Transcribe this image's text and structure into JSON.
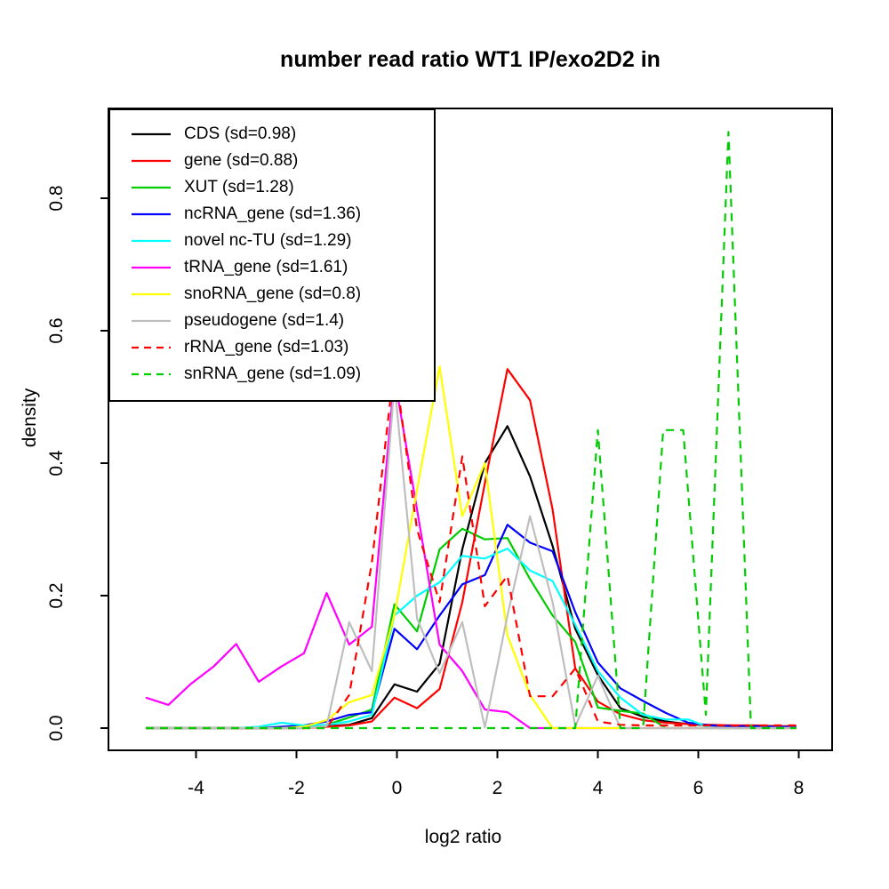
{
  "chart_data": {
    "type": "line",
    "title": "number read ratio WT1 IP/exo2D2 in",
    "xlabel": "log2 ratio",
    "ylabel": "density",
    "xlim": [
      -5.3,
      8.7
    ],
    "ylim": [
      0,
      0.935
    ],
    "grid": false,
    "legend_position": "top-left",
    "x_ticks": [
      {
        "label": "-4",
        "value": -4
      },
      {
        "label": "-2",
        "value": -2
      },
      {
        "label": "0",
        "value": 0
      },
      {
        "label": "2",
        "value": 2
      },
      {
        "label": "4",
        "value": 4
      },
      {
        "label": "6",
        "value": 6
      },
      {
        "label": "8",
        "value": 8
      }
    ],
    "y_ticks": [
      {
        "label": "0.0",
        "value": 0
      },
      {
        "label": "0.2",
        "value": 0.2
      },
      {
        "label": "0.4",
        "value": 0.4
      },
      {
        "label": "0.6",
        "value": 0.6
      },
      {
        "label": "0.8",
        "value": 0.8
      }
    ],
    "series": [
      {
        "name": "CDS",
        "sd": 0.98,
        "legend_label": "CDS (sd=0.98)",
        "color": "#000000",
        "style": "solid",
        "points": [
          [
            -5.0,
            0
          ],
          [
            -2.3,
            0
          ],
          [
            -1.85,
            0.001
          ],
          [
            -1.4,
            0.003
          ],
          [
            -0.95,
            0.005
          ],
          [
            -0.5,
            0.015
          ],
          [
            -0.05,
            0.066
          ],
          [
            0.4,
            0.055
          ],
          [
            0.85,
            0.097
          ],
          [
            1.3,
            0.27
          ],
          [
            1.75,
            0.4
          ],
          [
            2.2,
            0.456
          ],
          [
            2.65,
            0.38
          ],
          [
            3.1,
            0.275
          ],
          [
            3.55,
            0.15
          ],
          [
            4.0,
            0.08
          ],
          [
            4.45,
            0.03
          ],
          [
            4.9,
            0.017
          ],
          [
            5.35,
            0.01
          ],
          [
            5.8,
            0.006
          ],
          [
            6.25,
            0.004
          ],
          [
            6.7,
            0.003
          ],
          [
            7.15,
            0.003
          ],
          [
            7.6,
            0.002
          ],
          [
            7.95,
            0.002
          ]
        ]
      },
      {
        "name": "gene",
        "sd": 0.88,
        "legend_label": "gene (sd=0.88)",
        "color": "#FF0000",
        "style": "solid",
        "points": [
          [
            -5.0,
            0
          ],
          [
            -1.85,
            0
          ],
          [
            -1.4,
            0.002
          ],
          [
            -0.95,
            0.004
          ],
          [
            -0.5,
            0.01
          ],
          [
            -0.05,
            0.046
          ],
          [
            0.4,
            0.03
          ],
          [
            0.85,
            0.059
          ],
          [
            1.3,
            0.19
          ],
          [
            1.75,
            0.37
          ],
          [
            2.2,
            0.542
          ],
          [
            2.65,
            0.495
          ],
          [
            3.1,
            0.33
          ],
          [
            3.55,
            0.09
          ],
          [
            4.0,
            0.04
          ],
          [
            4.45,
            0.021
          ],
          [
            4.9,
            0.012
          ],
          [
            5.35,
            0.008
          ],
          [
            5.8,
            0.006
          ],
          [
            6.25,
            0.005
          ],
          [
            6.7,
            0.004
          ],
          [
            7.15,
            0.004
          ],
          [
            7.6,
            0.003
          ],
          [
            7.95,
            0.003
          ]
        ]
      },
      {
        "name": "XUT",
        "sd": 1.28,
        "legend_label": "XUT (sd=1.28)",
        "color": "#00CD00",
        "style": "solid",
        "points": [
          [
            -5.0,
            0
          ],
          [
            -1.85,
            0
          ],
          [
            -1.4,
            0.005
          ],
          [
            -0.95,
            0.016
          ],
          [
            -0.5,
            0.028
          ],
          [
            -0.05,
            0.187
          ],
          [
            0.4,
            0.146
          ],
          [
            0.85,
            0.27
          ],
          [
            1.3,
            0.301
          ],
          [
            1.75,
            0.285
          ],
          [
            2.2,
            0.287
          ],
          [
            2.65,
            0.225
          ],
          [
            3.1,
            0.17
          ],
          [
            3.55,
            0.13
          ],
          [
            4.0,
            0.031
          ],
          [
            4.45,
            0.026
          ],
          [
            4.9,
            0.022
          ],
          [
            5.35,
            0
          ],
          [
            7.95,
            0
          ]
        ]
      },
      {
        "name": "ncRNA_gene",
        "sd": 1.36,
        "legend_label": "ncRNA_gene (sd=1.36)",
        "color": "#0000FF",
        "style": "solid",
        "points": [
          [
            -5.0,
            0
          ],
          [
            -2.75,
            0
          ],
          [
            -2.3,
            0.002
          ],
          [
            -1.85,
            0.004
          ],
          [
            -1.4,
            0.01
          ],
          [
            -0.95,
            0.02
          ],
          [
            -0.5,
            0.024
          ],
          [
            -0.05,
            0.15
          ],
          [
            0.4,
            0.119
          ],
          [
            0.85,
            0.17
          ],
          [
            1.3,
            0.217
          ],
          [
            1.75,
            0.231
          ],
          [
            2.2,
            0.307
          ],
          [
            2.65,
            0.28
          ],
          [
            3.1,
            0.267
          ],
          [
            3.55,
            0.175
          ],
          [
            4.0,
            0.099
          ],
          [
            4.45,
            0.06
          ],
          [
            4.9,
            0.041
          ],
          [
            5.35,
            0.023
          ],
          [
            5.8,
            0.008
          ],
          [
            6.25,
            0.004
          ],
          [
            6.7,
            0.003
          ],
          [
            7.15,
            0.003
          ],
          [
            7.6,
            0.002
          ],
          [
            7.95,
            0.002
          ]
        ]
      },
      {
        "name": "novel nc-TU",
        "sd": 1.29,
        "legend_label": "novel nc-TU (sd=1.29)",
        "color": "#00FFFF",
        "style": "solid",
        "points": [
          [
            -5.0,
            0
          ],
          [
            -3.2,
            0
          ],
          [
            -2.75,
            0.002
          ],
          [
            -2.3,
            0.008
          ],
          [
            -1.85,
            0.004
          ],
          [
            -1.4,
            0.005
          ],
          [
            -0.95,
            0.01
          ],
          [
            -0.5,
            0.02
          ],
          [
            -0.05,
            0.17
          ],
          [
            0.4,
            0.2
          ],
          [
            0.85,
            0.22
          ],
          [
            1.3,
            0.26
          ],
          [
            1.75,
            0.256
          ],
          [
            2.2,
            0.271
          ],
          [
            2.65,
            0.238
          ],
          [
            3.1,
            0.222
          ],
          [
            3.55,
            0.156
          ],
          [
            4.0,
            0.086
          ],
          [
            4.45,
            0.046
          ],
          [
            4.9,
            0.02
          ],
          [
            5.35,
            0.013
          ],
          [
            5.8,
            0.013
          ],
          [
            6.25,
            0
          ],
          [
            7.95,
            0
          ]
        ]
      },
      {
        "name": "tRNA_gene",
        "sd": 1.61,
        "legend_label": "tRNA_gene (sd=1.61)",
        "color": "#FF00FF",
        "style": "solid",
        "points": [
          [
            -5.0,
            0.046
          ],
          [
            -4.55,
            0.035
          ],
          [
            -4.1,
            0.067
          ],
          [
            -3.65,
            0.093
          ],
          [
            -3.2,
            0.127
          ],
          [
            -2.75,
            0.07
          ],
          [
            -2.3,
            0.093
          ],
          [
            -1.85,
            0.113
          ],
          [
            -1.4,
            0.204
          ],
          [
            -0.95,
            0.126
          ],
          [
            -0.5,
            0.153
          ],
          [
            -0.05,
            0.53
          ],
          [
            0.4,
            0.33
          ],
          [
            0.85,
            0.126
          ],
          [
            1.3,
            0.086
          ],
          [
            1.75,
            0.028
          ],
          [
            2.2,
            0.024
          ],
          [
            2.65,
            0
          ],
          [
            7.95,
            0
          ]
        ]
      },
      {
        "name": "snoRNA_gene",
        "sd": 0.8,
        "legend_label": "snoRNA_gene (sd=0.8)",
        "color": "#FFFF00",
        "style": "solid",
        "points": [
          [
            -5.0,
            0
          ],
          [
            -2.3,
            0
          ],
          [
            -1.85,
            0.002
          ],
          [
            -1.4,
            0.012
          ],
          [
            -0.95,
            0.039
          ],
          [
            -0.5,
            0.05
          ],
          [
            -0.05,
            0.17
          ],
          [
            0.4,
            0.36
          ],
          [
            0.85,
            0.546
          ],
          [
            1.3,
            0.32
          ],
          [
            1.75,
            0.4
          ],
          [
            2.2,
            0.14
          ],
          [
            2.65,
            0.05
          ],
          [
            3.1,
            0
          ],
          [
            7.95,
            0
          ]
        ]
      },
      {
        "name": "pseudogene",
        "sd": 1.4,
        "legend_label": "pseudogene (sd=1.4)",
        "color": "#BEBEBE",
        "style": "solid",
        "points": [
          [
            -5.0,
            0
          ],
          [
            -1.85,
            0
          ],
          [
            -1.4,
            0.003
          ],
          [
            -0.95,
            0.16
          ],
          [
            -0.5,
            0.086
          ],
          [
            -0.05,
            0.52
          ],
          [
            0.4,
            0.166
          ],
          [
            0.85,
            0.083
          ],
          [
            1.3,
            0.16
          ],
          [
            1.75,
            0.001
          ],
          [
            2.2,
            0.17
          ],
          [
            2.65,
            0.32
          ],
          [
            3.1,
            0.19
          ],
          [
            3.55,
            0.003
          ],
          [
            4.0,
            0.079
          ],
          [
            4.45,
            0
          ],
          [
            7.95,
            0
          ]
        ]
      },
      {
        "name": "rRNA_gene",
        "sd": 1.03,
        "legend_label": "rRNA_gene (sd=1.03)",
        "color": "#FF0000",
        "style": "dashed",
        "points": [
          [
            -5.0,
            0
          ],
          [
            -1.4,
            0
          ],
          [
            -0.95,
            0.05
          ],
          [
            -0.5,
            0.25
          ],
          [
            -0.05,
            0.55
          ],
          [
            0.4,
            0.3
          ],
          [
            0.85,
            0.19
          ],
          [
            1.3,
            0.41
          ],
          [
            1.75,
            0.184
          ],
          [
            2.2,
            0.23
          ],
          [
            2.65,
            0.048
          ],
          [
            3.1,
            0.048
          ],
          [
            3.55,
            0.09
          ],
          [
            4.0,
            0.01
          ],
          [
            4.45,
            0.005
          ],
          [
            4.9,
            0.004
          ],
          [
            5.35,
            0.004
          ],
          [
            5.8,
            0.004
          ],
          [
            6.25,
            0.004
          ],
          [
            6.7,
            0.004
          ],
          [
            7.15,
            0.004
          ],
          [
            7.6,
            0.004
          ],
          [
            7.95,
            0.004
          ]
        ]
      },
      {
        "name": "snRNA_gene",
        "sd": 1.09,
        "legend_label": "snRNA_gene (sd=1.09)",
        "color": "#00CD00",
        "style": "dashed",
        "points": [
          [
            -5.0,
            0
          ],
          [
            3.55,
            0
          ],
          [
            4.0,
            0.45
          ],
          [
            4.45,
            0
          ],
          [
            4.9,
            0
          ],
          [
            5.3,
            0.45
          ],
          [
            5.7,
            0.45
          ],
          [
            6.15,
            0.02
          ],
          [
            6.6,
            0.9
          ],
          [
            7.05,
            0
          ],
          [
            7.95,
            0
          ]
        ]
      }
    ]
  }
}
